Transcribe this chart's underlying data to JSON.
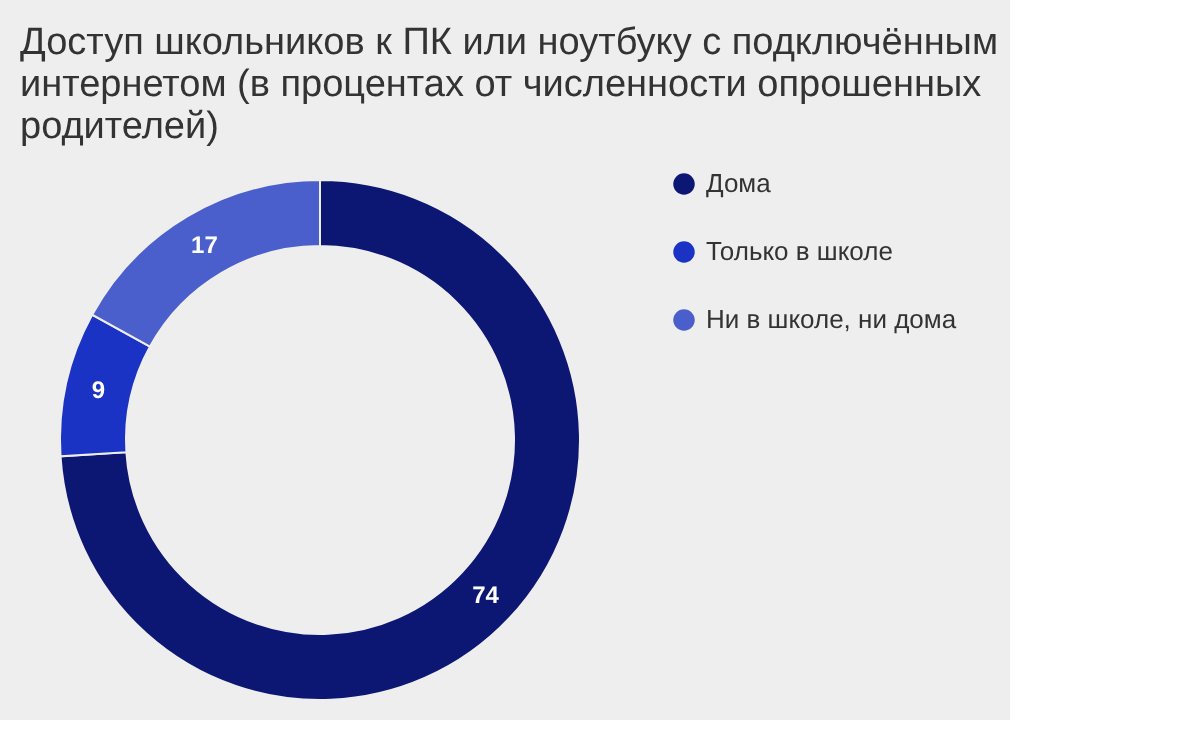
{
  "chart_data": {
    "type": "donut",
    "title": "Доступ школьников к ПК или ноутбуку с подключённым интернетом (в процентах от численности опрошенных родителей)",
    "categories": [
      "Дома",
      "Только в школе",
      "Ни в школе, ни дома"
    ],
    "values": [
      74,
      9,
      17
    ],
    "colors": [
      "#0c1773",
      "#1a33c4",
      "#4a5fcc"
    ],
    "data_labels": true,
    "legend": "top right"
  }
}
